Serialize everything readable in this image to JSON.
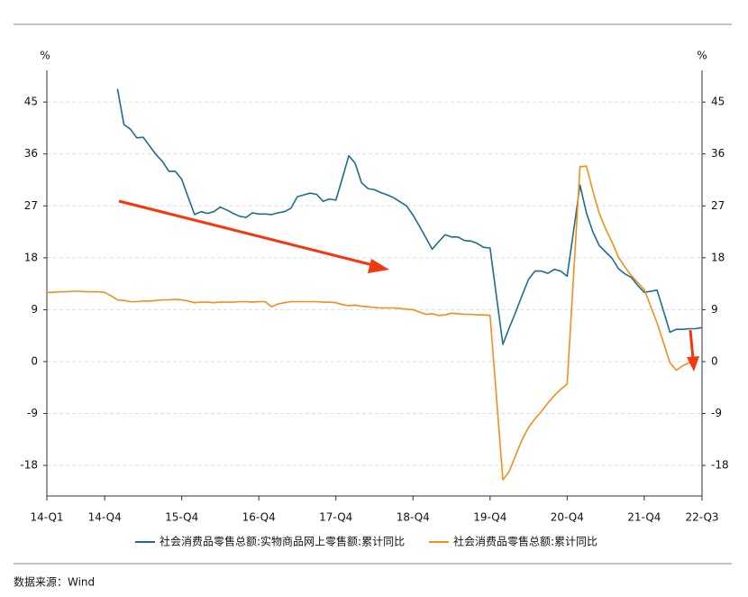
{
  "chart_data": {
    "type": "line",
    "y_label": "%",
    "y2_label": "%",
    "categories": [
      "14-Q1",
      null,
      null,
      null,
      null,
      null,
      null,
      null,
      null,
      "14-Q4",
      null,
      null,
      null,
      null,
      null,
      null,
      null,
      null,
      null,
      null,
      null,
      "15-Q4",
      null,
      null,
      null,
      null,
      null,
      null,
      null,
      null,
      null,
      null,
      null,
      "16-Q4",
      null,
      null,
      null,
      null,
      null,
      null,
      null,
      null,
      null,
      null,
      null,
      "17-Q4",
      null,
      null,
      null,
      null,
      null,
      null,
      null,
      null,
      null,
      null,
      null,
      "18-Q4",
      null,
      null,
      null,
      null,
      null,
      null,
      null,
      null,
      null,
      null,
      null,
      "19-Q4",
      null,
      null,
      null,
      null,
      null,
      null,
      null,
      null,
      null,
      null,
      null,
      "20-Q4",
      null,
      null,
      null,
      null,
      null,
      null,
      null,
      null,
      null,
      null,
      null,
      "21-Q4",
      null,
      null,
      null,
      null,
      null,
      null,
      null,
      null,
      "22-Q3"
    ],
    "series": [
      {
        "name": "社会消费品零售总额:实物商品网上零售额:累计同比",
        "color": "#1f6b8e",
        "values": [
          null,
          null,
          null,
          null,
          null,
          null,
          null,
          null,
          null,
          null,
          null,
          47.3,
          41.1,
          40.3,
          38.8,
          38.9,
          37.4,
          35.9,
          34.7,
          33,
          33,
          31.6,
          28.5,
          25.5,
          26,
          25.7,
          26,
          26.8,
          26.3,
          25.7,
          25.2,
          25,
          25.8,
          25.6,
          25.6,
          25.5,
          25.8,
          26,
          26.6,
          28.6,
          28.9,
          29.2,
          29,
          27.8,
          28.2,
          28,
          31.8,
          35.7,
          34.4,
          31,
          30,
          29.8,
          29.3,
          28.9,
          28.4,
          27.7,
          27,
          25.4,
          23.5,
          21.5,
          19.5,
          20.8,
          22,
          21.6,
          21.6,
          21,
          20.9,
          20.5,
          19.8,
          19.7,
          11.3,
          3,
          5.9,
          8.6,
          11.5,
          14.3,
          15.7,
          15.7,
          15.3,
          16,
          15.7,
          14.8,
          22.7,
          30.6,
          25.8,
          22.5,
          20.1,
          19,
          17.9,
          16.1,
          15.2,
          14.6,
          13.2,
          12,
          12.2,
          12.4,
          8.8,
          5.1,
          5.6,
          5.6,
          5.7,
          5.7,
          5.9
        ]
      },
      {
        "name": "社会消费品零售总额:累计同比",
        "color": "#f28e1c",
        "values": [
          12.0,
          12.0,
          12.1,
          12.1,
          12.2,
          12.2,
          12.1,
          12.1,
          12.1,
          12.0,
          11.4,
          10.7,
          10.6,
          10.4,
          10.4,
          10.5,
          10.5,
          10.6,
          10.7,
          10.7,
          10.8,
          10.7,
          10.5,
          10.2,
          10.3,
          10.3,
          10.2,
          10.3,
          10.3,
          10.3,
          10.4,
          10.4,
          10.3,
          10.4,
          10.4,
          9.5,
          10.0,
          10.2,
          10.4,
          10.4,
          10.4,
          10.4,
          10.4,
          10.3,
          10.3,
          10.2,
          9.9,
          9.7,
          9.8,
          9.6,
          9.5,
          9.4,
          9.3,
          9.3,
          9.3,
          9.2,
          9.1,
          9.0,
          8.6,
          8.2,
          8.3,
          8.0,
          8.1,
          8.4,
          8.3,
          8.2,
          8.2,
          8.1,
          8.1,
          8.0,
          -6.2,
          -20.5,
          -19.0,
          -16.2,
          -13.5,
          -11.4,
          -9.9,
          -8.6,
          -7.2,
          -5.9,
          -4.8,
          -3.9,
          15,
          33.8,
          33.9,
          29.6,
          25.7,
          23,
          20.7,
          18.1,
          16.4,
          14.9,
          13.7,
          12.5,
          9.6,
          6.7,
          3.3,
          -0.2,
          -1.5,
          -0.7,
          -0.2,
          0.5,
          null
        ]
      }
    ],
    "ylim": [
      -23.3,
      50.5
    ],
    "yticks": [
      -18,
      -9,
      0,
      9,
      18,
      27,
      36,
      45
    ],
    "grid": true,
    "source": "数据来源：Wind"
  }
}
